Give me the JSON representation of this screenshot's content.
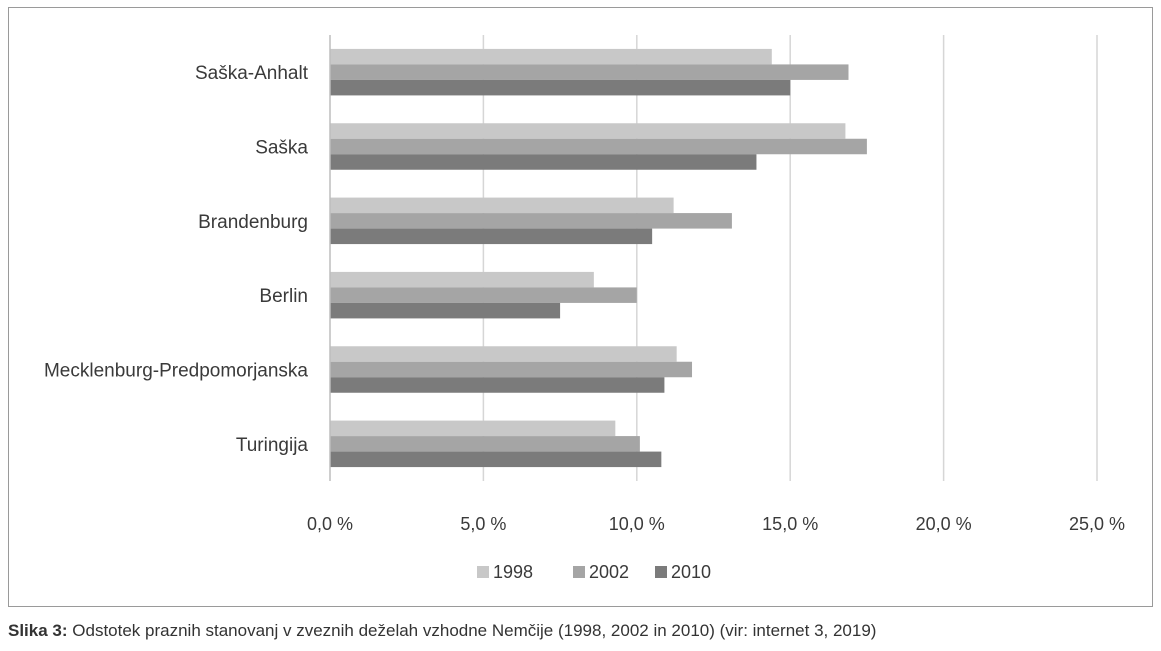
{
  "chart_data": {
    "type": "bar",
    "orientation": "horizontal",
    "categories": [
      "Saška-Anhalt",
      "Saška",
      "Brandenburg",
      "Berlin",
      "Mecklenburg-Predpomorjanska",
      "Turingija"
    ],
    "series": [
      {
        "name": "1998",
        "values": [
          14.4,
          16.8,
          11.2,
          8.6,
          11.3,
          9.3
        ],
        "color": "#c8c8c8"
      },
      {
        "name": "2002",
        "values": [
          16.9,
          17.5,
          13.1,
          10.0,
          11.8,
          10.1
        ],
        "color": "#a5a5a5"
      },
      {
        "name": "2010",
        "values": [
          15.0,
          13.9,
          10.5,
          7.5,
          10.9,
          10.8
        ],
        "color": "#7b7b7b"
      }
    ],
    "xlim": [
      0,
      25
    ],
    "ticks": [
      0,
      5,
      10,
      15,
      20,
      25
    ],
    "tick_labels": [
      "0,0 %",
      "5,0 %",
      "10,0 %",
      "15,0 %",
      "20,0 %",
      "25,0 %"
    ],
    "grid": true,
    "legend_position": "bottom"
  },
  "caption": {
    "label": "Slika 3:",
    "text": " Odstotek praznih stanovanj v zveznih deželah vzhodne Nemčije (1998, 2002 in 2010) (vir: internet 3, 2019)"
  }
}
